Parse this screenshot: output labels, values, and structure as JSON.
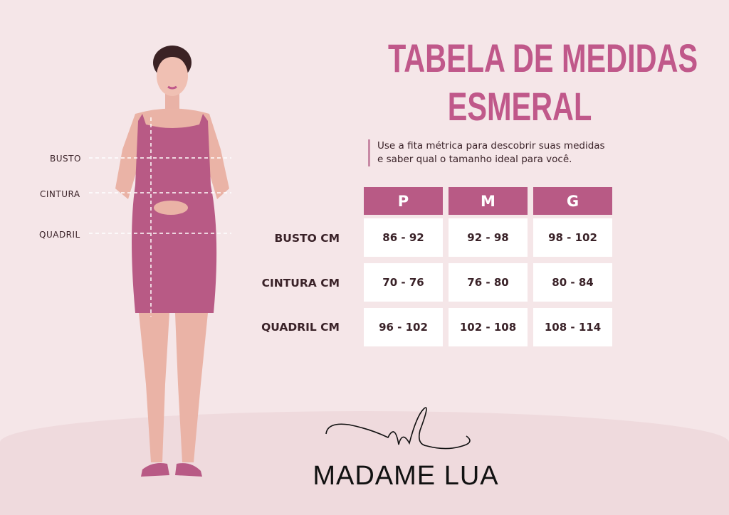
{
  "title": {
    "line1": "TABELA DE MEDIDAS",
    "line2": "ESMERAL"
  },
  "subtitle": {
    "line1": "Use a fita métrica para descobrir suas medidas",
    "line2": "e saber qual o tamanho ideal para você."
  },
  "body_labels": [
    "BUSTO",
    "CINTURA",
    "QUADRIL"
  ],
  "table": {
    "headers": [
      "P",
      "M",
      "G"
    ],
    "rows": [
      {
        "label": "BUSTO CM",
        "values": [
          "86 - 92",
          "92 - 98",
          "98 - 102"
        ]
      },
      {
        "label": "CINTURA CM",
        "values": [
          "70 - 76",
          "76 - 80",
          "80 - 84"
        ]
      },
      {
        "label": "QUADRIL CM",
        "values": [
          "96 - 102",
          "102 - 108",
          "108 - 114"
        ]
      }
    ]
  },
  "brand": {
    "monogram": "ml",
    "name": "MADAME LUA"
  },
  "colors": {
    "accent": "#b85a85",
    "title": "#c0588a",
    "background": "#f5e6e8",
    "dress": "#b85a85"
  }
}
